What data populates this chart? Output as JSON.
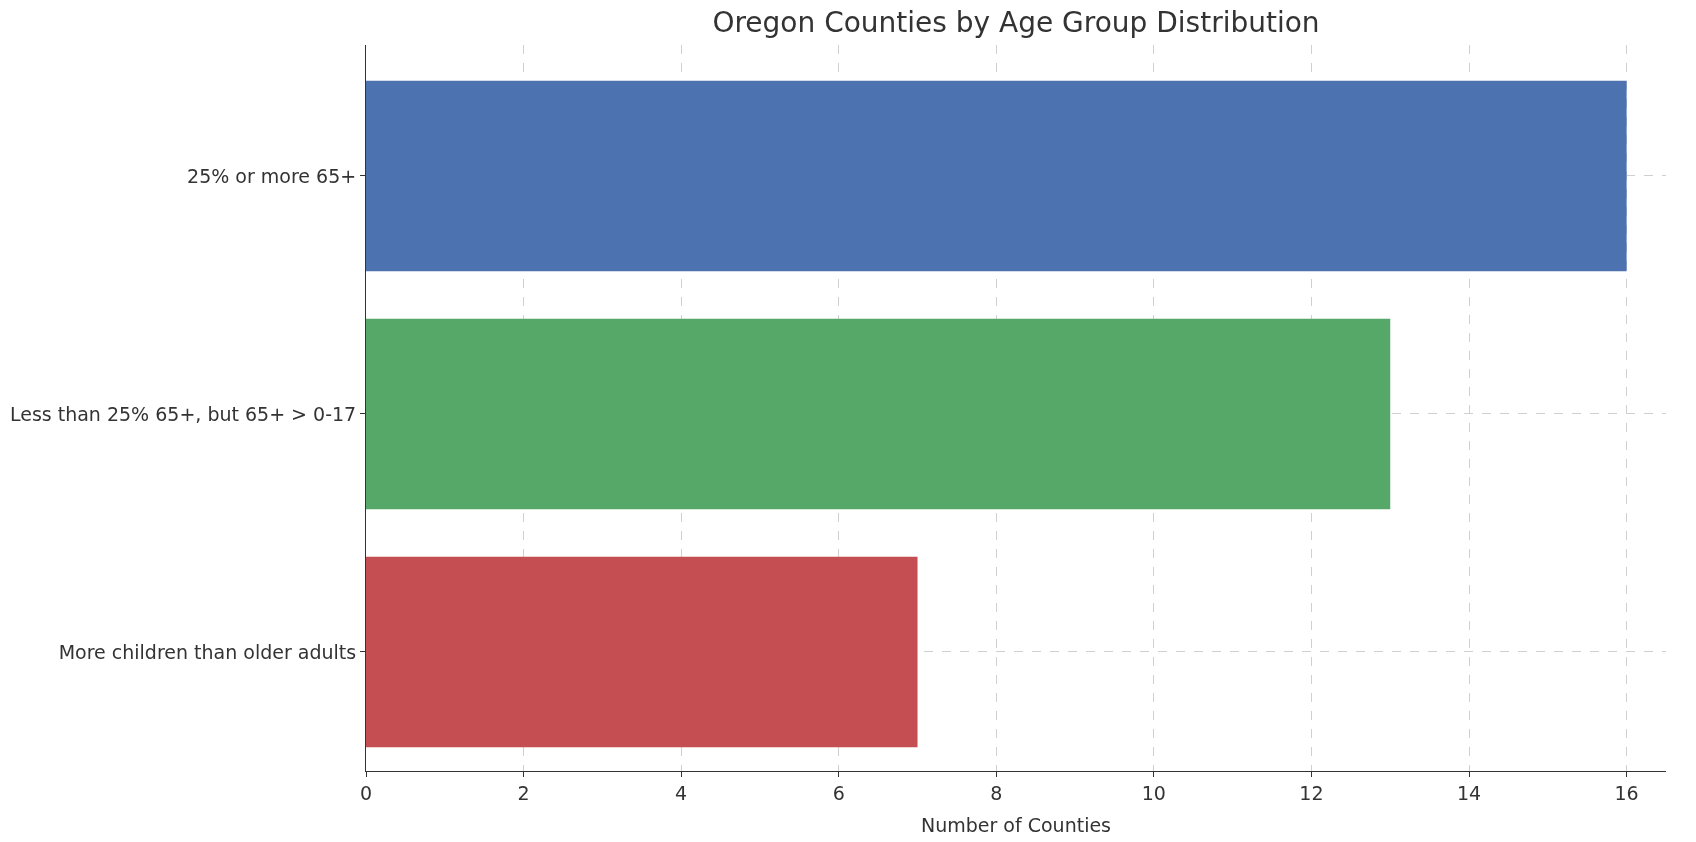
{
  "chart_data": {
    "type": "bar",
    "orientation": "horizontal",
    "title": "Oregon Counties by Age Group Distribution",
    "xlabel": "Number of Counties",
    "categories": [
      "25% or more 65+",
      "Less than 25% 65+, but 65+ > 0-17",
      "More children than older adults"
    ],
    "values": [
      16,
      13,
      7
    ],
    "colors": [
      "#4c72b0",
      "#55a868",
      "#c44e52"
    ],
    "xlim": [
      0,
      16.5
    ],
    "xticks": [
      0,
      2,
      4,
      6,
      8,
      10,
      12,
      14,
      16
    ],
    "grid": true
  }
}
